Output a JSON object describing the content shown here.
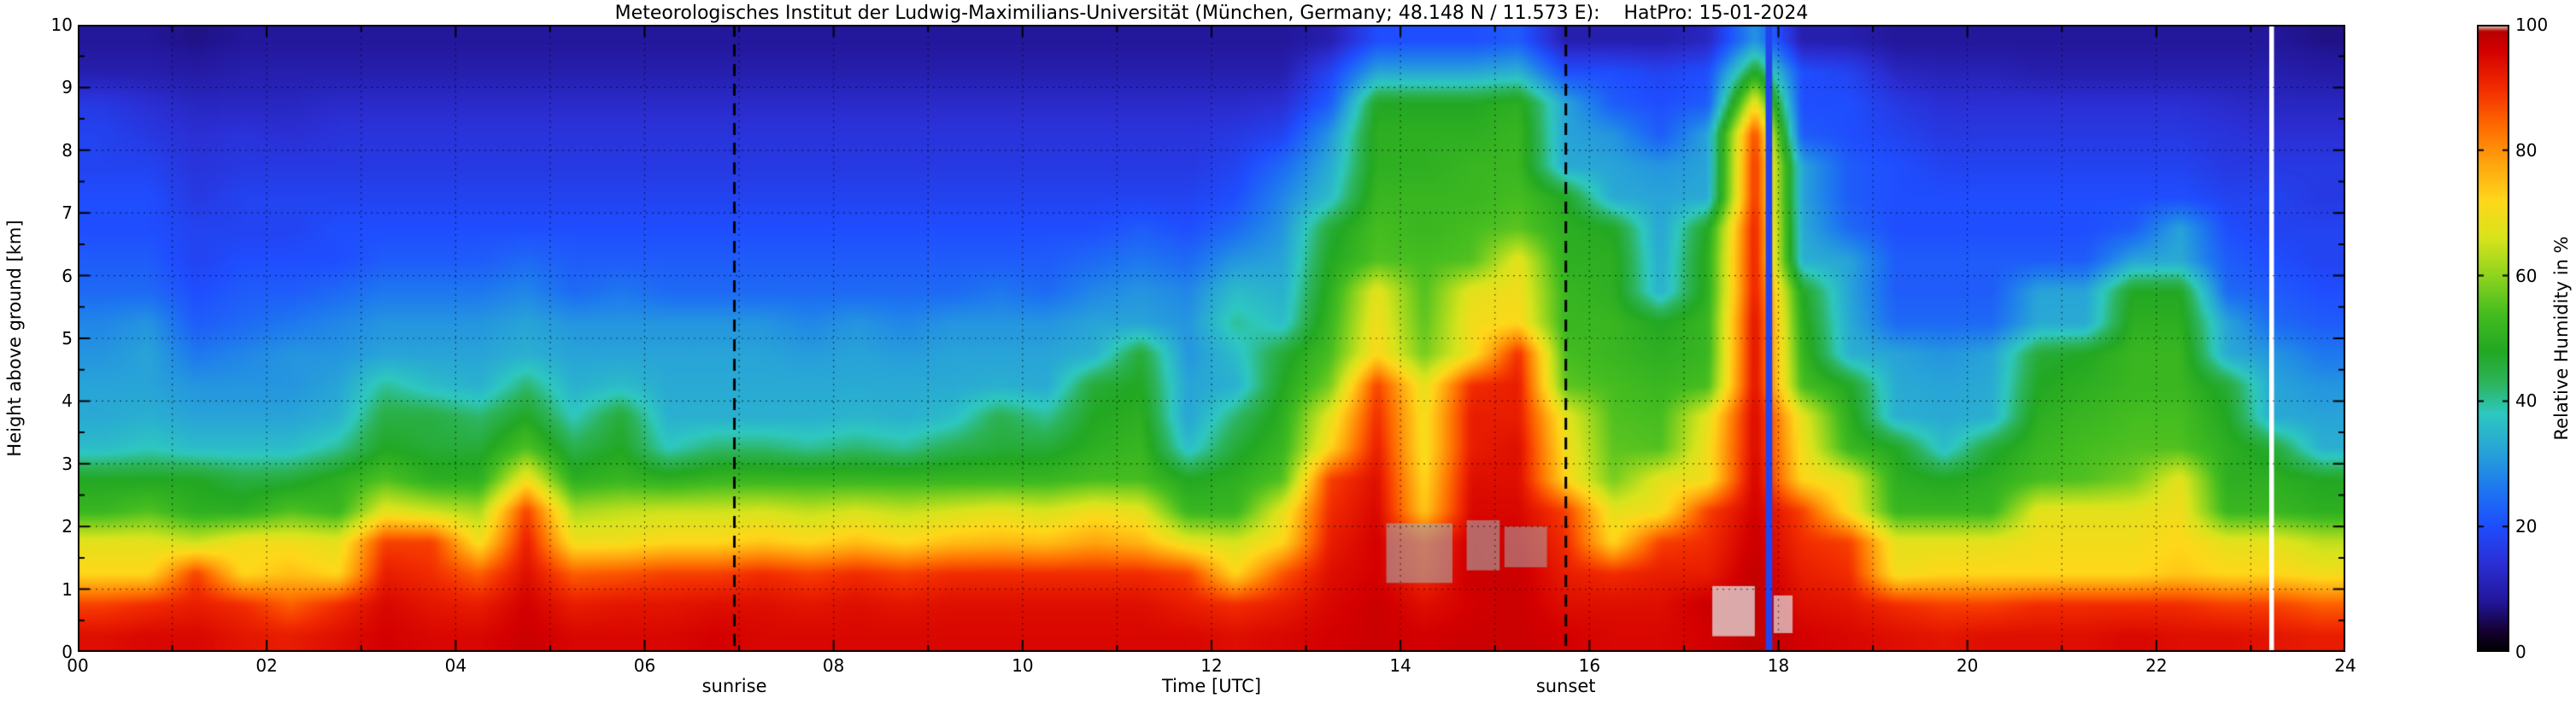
{
  "header": {
    "title": "Meteorologisches Institut der Ludwig-Maximilians-Universität (München, Germany; 48.148 N / 11.573 E):    HatPro: 15-01-2024"
  },
  "chart_data": {
    "type": "heatmap",
    "title": "Meteorologisches Institut der Ludwig-Maximilians-Universität (München, Germany; 48.148 N / 11.573 E):    HatPro: 15-01-2024",
    "xlabel": "Time [UTC]",
    "ylabel": "Height above ground [km]",
    "colorbar_label": "Relative Humidity in %",
    "x_range_hours": [
      0,
      24
    ],
    "y_range_km": [
      0,
      10
    ],
    "x_tick_hours": [
      0,
      2,
      4,
      6,
      8,
      10,
      12,
      14,
      16,
      18,
      20,
      22,
      24
    ],
    "x_tick_labels": [
      "00",
      "02",
      "04",
      "06",
      "08",
      "10",
      "12",
      "14",
      "16",
      "18",
      "20",
      "22",
      "24"
    ],
    "y_ticks": [
      0,
      1,
      2,
      3,
      4,
      5,
      6,
      7,
      8,
      9,
      10
    ],
    "colorbar_ticks": [
      0,
      20,
      40,
      60,
      80,
      100
    ],
    "grid": {
      "x_interval_hours": 1,
      "y_interval_km": 1,
      "style": "dotted"
    },
    "annotations": {
      "sunrise": {
        "label": "sunrise",
        "time_utc": 6.95
      },
      "sunset": {
        "label": "sunset",
        "time_utc": 15.75
      }
    },
    "colormap_stops": [
      [
        0,
        "#000000"
      ],
      [
        3,
        "#14002e"
      ],
      [
        8,
        "#23179b"
      ],
      [
        14,
        "#2b2fd4"
      ],
      [
        20,
        "#1f4eff"
      ],
      [
        26,
        "#1e78f0"
      ],
      [
        32,
        "#28a4d8"
      ],
      [
        38,
        "#2ec8c0"
      ],
      [
        43,
        "#2db45a"
      ],
      [
        48,
        "#23a823"
      ],
      [
        54,
        "#45bd20"
      ],
      [
        60,
        "#8fd41e"
      ],
      [
        66,
        "#d8e41c"
      ],
      [
        72,
        "#ffd81a"
      ],
      [
        78,
        "#ffa50f"
      ],
      [
        84,
        "#ff6a00"
      ],
      [
        90,
        "#f22c00"
      ],
      [
        96,
        "#d40000"
      ],
      [
        99,
        "#b80000"
      ],
      [
        100,
        "#efe6c8"
      ]
    ],
    "vertical_stripes": [
      {
        "time_utc": 17.9,
        "color": "#2244ee",
        "width_hours": 0.07
      },
      {
        "time_utc": 23.22,
        "color": "#ffffff",
        "width_hours": 0.05
      }
    ],
    "gray_patches": [
      {
        "t0": 13.85,
        "t1": 14.55,
        "h0": 1.1,
        "h1": 2.05,
        "color": "rgba(170,170,170,0.6)"
      },
      {
        "t0": 14.7,
        "t1": 15.05,
        "h0": 1.3,
        "h1": 2.1,
        "color": "rgba(170,170,170,0.6)"
      },
      {
        "t0": 15.1,
        "t1": 15.55,
        "h0": 1.35,
        "h1": 2.0,
        "color": "rgba(170,170,170,0.55)"
      },
      {
        "t0": 17.3,
        "t1": 17.75,
        "h0": 0.25,
        "h1": 1.05,
        "color": "rgba(225,225,225,0.75)"
      },
      {
        "t0": 17.95,
        "t1": 18.15,
        "h0": 0.3,
        "h1": 0.9,
        "color": "rgba(225,225,225,0.7)"
      }
    ],
    "times_utc": [
      0.25,
      0.75,
      1.25,
      1.75,
      2.25,
      2.75,
      3.25,
      3.75,
      4.25,
      4.75,
      5.25,
      5.75,
      6.25,
      6.75,
      7.25,
      7.75,
      8.25,
      8.75,
      9.25,
      9.75,
      10.25,
      10.75,
      11.25,
      11.75,
      12.25,
      12.75,
      13.25,
      13.75,
      14.25,
      14.75,
      15.25,
      15.75,
      16.25,
      16.75,
      17.25,
      17.75,
      18.25,
      18.75,
      19.25,
      19.75,
      20.25,
      20.75,
      21.25,
      21.75,
      22.25,
      22.75,
      23.25,
      23.75
    ],
    "heights_km_top_to_bottom": [
      9.75,
      9.25,
      8.75,
      8.25,
      7.75,
      7.25,
      6.75,
      6.25,
      5.75,
      5.25,
      4.75,
      4.25,
      3.75,
      3.25,
      2.75,
      2.25,
      1.75,
      1.25,
      0.75,
      0.25
    ],
    "humidity_percent_columns": [
      [
        8,
        10,
        16,
        18,
        18,
        20,
        20,
        22,
        24,
        28,
        30,
        32,
        33,
        36,
        48,
        52,
        68,
        72,
        88,
        94
      ],
      [
        8,
        10,
        14,
        16,
        18,
        20,
        20,
        22,
        24,
        30,
        32,
        32,
        34,
        38,
        48,
        55,
        68,
        72,
        90,
        95
      ],
      [
        7,
        9,
        12,
        14,
        15,
        16,
        18,
        18,
        20,
        22,
        26,
        30,
        32,
        36,
        48,
        50,
        65,
        88,
        92,
        95
      ],
      [
        8,
        10,
        12,
        15,
        16,
        18,
        18,
        20,
        22,
        24,
        28,
        30,
        32,
        36,
        45,
        50,
        70,
        72,
        90,
        93
      ],
      [
        8,
        10,
        12,
        14,
        16,
        18,
        18,
        20,
        22,
        26,
        30,
        30,
        32,
        36,
        46,
        55,
        70,
        75,
        85,
        92
      ],
      [
        8,
        10,
        13,
        15,
        16,
        18,
        20,
        20,
        24,
        28,
        30,
        32,
        34,
        40,
        50,
        52,
        68,
        72,
        90,
        94
      ],
      [
        8,
        10,
        13,
        15,
        16,
        18,
        20,
        22,
        26,
        30,
        32,
        40,
        45,
        48,
        55,
        68,
        88,
        92,
        95,
        96
      ],
      [
        8,
        10,
        13,
        15,
        16,
        18,
        20,
        22,
        26,
        30,
        32,
        36,
        45,
        46,
        50,
        65,
        88,
        90,
        93,
        95
      ],
      [
        8,
        10,
        13,
        15,
        16,
        18,
        20,
        22,
        26,
        30,
        32,
        34,
        42,
        46,
        50,
        62,
        70,
        85,
        92,
        95
      ],
      [
        8,
        10,
        13,
        15,
        16,
        18,
        20,
        24,
        28,
        32,
        34,
        42,
        48,
        55,
        70,
        88,
        92,
        94,
        96,
        97
      ],
      [
        8,
        10,
        13,
        15,
        16,
        18,
        20,
        22,
        24,
        30,
        32,
        34,
        38,
        44,
        50,
        62,
        70,
        85,
        92,
        95
      ],
      [
        8,
        10,
        13,
        15,
        16,
        18,
        20,
        22,
        26,
        30,
        32,
        36,
        46,
        48,
        52,
        64,
        70,
        86,
        93,
        95
      ],
      [
        8,
        10,
        13,
        15,
        16,
        18,
        20,
        22,
        24,
        30,
        32,
        33,
        34,
        38,
        50,
        65,
        72,
        88,
        93,
        95
      ],
      [
        8,
        10,
        13,
        15,
        16,
        18,
        20,
        22,
        24,
        30,
        32,
        33,
        34,
        42,
        52,
        65,
        72,
        88,
        94,
        96
      ],
      [
        8,
        10,
        13,
        15,
        16,
        18,
        20,
        22,
        24,
        30,
        32,
        33,
        34,
        42,
        52,
        66,
        74,
        90,
        94,
        95
      ],
      [
        8,
        10,
        13,
        15,
        16,
        18,
        20,
        22,
        24,
        28,
        31,
        33,
        34,
        40,
        52,
        64,
        72,
        88,
        93,
        95
      ],
      [
        8,
        10,
        13,
        15,
        16,
        18,
        20,
        22,
        24,
        30,
        32,
        33,
        35,
        42,
        52,
        66,
        75,
        90,
        94,
        95
      ],
      [
        8,
        10,
        13,
        15,
        16,
        18,
        20,
        22,
        24,
        28,
        31,
        33,
        34,
        40,
        52,
        64,
        72,
        88,
        93,
        95
      ],
      [
        8,
        10,
        13,
        15,
        16,
        18,
        20,
        22,
        24,
        30,
        32,
        33,
        36,
        44,
        52,
        66,
        75,
        90,
        94,
        95
      ],
      [
        8,
        10,
        13,
        15,
        16,
        18,
        20,
        22,
        26,
        30,
        32,
        34,
        44,
        46,
        52,
        68,
        76,
        90,
        94,
        95
      ],
      [
        8,
        10,
        13,
        15,
        16,
        18,
        20,
        22,
        24,
        30,
        32,
        33,
        40,
        46,
        52,
        66,
        75,
        90,
        94,
        95
      ],
      [
        8,
        10,
        13,
        15,
        16,
        18,
        20,
        24,
        28,
        32,
        34,
        46,
        48,
        50,
        54,
        70,
        78,
        90,
        94,
        95
      ],
      [
        8,
        10,
        13,
        15,
        16,
        18,
        22,
        26,
        30,
        32,
        46,
        48,
        50,
        52,
        54,
        68,
        76,
        90,
        94,
        95
      ],
      [
        8,
        10,
        13,
        15,
        16,
        18,
        20,
        24,
        28,
        30,
        30,
        32,
        32,
        36,
        48,
        52,
        68,
        88,
        92,
        95
      ],
      [
        8,
        10,
        13,
        16,
        18,
        20,
        24,
        30,
        36,
        40,
        36,
        34,
        42,
        46,
        50,
        52,
        66,
        72,
        90,
        94
      ],
      [
        8,
        10,
        14,
        18,
        24,
        28,
        30,
        32,
        34,
        36,
        46,
        48,
        50,
        52,
        55,
        68,
        72,
        86,
        92,
        95
      ],
      [
        10,
        18,
        22,
        30,
        33,
        36,
        46,
        48,
        50,
        52,
        54,
        58,
        68,
        72,
        88,
        90,
        92,
        94,
        95,
        96
      ],
      [
        20,
        32,
        48,
        50,
        50,
        52,
        54,
        55,
        68,
        70,
        72,
        88,
        90,
        92,
        94,
        95,
        96,
        96,
        97,
        97
      ],
      [
        20,
        32,
        48,
        50,
        50,
        52,
        52,
        54,
        55,
        56,
        58,
        68,
        70,
        70,
        72,
        74,
        88,
        90,
        94,
        96
      ],
      [
        20,
        32,
        48,
        50,
        52,
        52,
        54,
        55,
        68,
        70,
        70,
        90,
        92,
        92,
        94,
        95,
        97,
        97,
        96,
        97
      ],
      [
        22,
        34,
        50,
        52,
        52,
        54,
        56,
        68,
        70,
        72,
        90,
        92,
        92,
        94,
        94,
        95,
        96,
        97,
        97,
        97
      ],
      [
        10,
        20,
        32,
        32,
        33,
        48,
        50,
        50,
        52,
        52,
        54,
        56,
        68,
        70,
        72,
        88,
        90,
        92,
        94,
        96
      ],
      [
        10,
        20,
        22,
        30,
        32,
        33,
        48,
        50,
        50,
        52,
        52,
        54,
        55,
        56,
        58,
        68,
        72,
        90,
        94,
        95
      ],
      [
        10,
        18,
        20,
        22,
        30,
        32,
        32,
        33,
        34,
        48,
        50,
        52,
        54,
        55,
        68,
        70,
        88,
        92,
        94,
        95
      ],
      [
        12,
        20,
        22,
        32,
        32,
        33,
        48,
        50,
        50,
        52,
        52,
        54,
        68,
        70,
        70,
        88,
        90,
        92,
        97,
        96
      ],
      [
        30,
        48,
        70,
        88,
        90,
        90,
        92,
        92,
        92,
        94,
        94,
        94,
        95,
        95,
        96,
        96,
        97,
        98,
        98,
        98
      ],
      [
        10,
        20,
        20,
        22,
        32,
        32,
        33,
        34,
        48,
        50,
        52,
        54,
        68,
        70,
        72,
        88,
        90,
        92,
        94,
        96
      ],
      [
        10,
        18,
        20,
        20,
        22,
        22,
        24,
        32,
        32,
        33,
        34,
        48,
        50,
        52,
        68,
        70,
        88,
        90,
        93,
        95
      ],
      [
        8,
        12,
        16,
        18,
        20,
        20,
        20,
        22,
        22,
        24,
        32,
        33,
        34,
        48,
        50,
        52,
        68,
        70,
        90,
        94
      ],
      [
        8,
        11,
        14,
        16,
        18,
        20,
        20,
        22,
        22,
        24,
        30,
        32,
        33,
        36,
        48,
        52,
        68,
        72,
        88,
        93
      ],
      [
        8,
        11,
        14,
        16,
        18,
        20,
        20,
        22,
        22,
        24,
        32,
        33,
        34,
        46,
        50,
        52,
        68,
        72,
        88,
        94
      ],
      [
        8,
        10,
        14,
        16,
        18,
        20,
        20,
        22,
        32,
        33,
        46,
        48,
        50,
        52,
        54,
        68,
        70,
        72,
        90,
        94
      ],
      [
        8,
        10,
        14,
        16,
        18,
        20,
        20,
        22,
        32,
        33,
        48,
        50,
        52,
        54,
        55,
        68,
        70,
        72,
        90,
        94
      ],
      [
        8,
        10,
        14,
        16,
        18,
        20,
        22,
        32,
        48,
        50,
        52,
        52,
        54,
        55,
        58,
        68,
        70,
        72,
        90,
        95
      ],
      [
        8,
        10,
        14,
        16,
        18,
        20,
        32,
        33,
        48,
        50,
        52,
        52,
        54,
        55,
        68,
        70,
        72,
        74,
        90,
        94
      ],
      [
        8,
        10,
        13,
        15,
        16,
        18,
        20,
        22,
        24,
        32,
        33,
        46,
        48,
        50,
        50,
        52,
        68,
        72,
        88,
        94
      ],
      [
        8,
        10,
        12,
        14,
        16,
        18,
        18,
        20,
        22,
        24,
        30,
        32,
        33,
        46,
        50,
        52,
        68,
        72,
        88,
        93
      ],
      [
        7,
        9,
        12,
        14,
        16,
        16,
        18,
        18,
        20,
        22,
        26,
        30,
        32,
        34,
        48,
        50,
        64,
        70,
        85,
        92
      ]
    ]
  }
}
